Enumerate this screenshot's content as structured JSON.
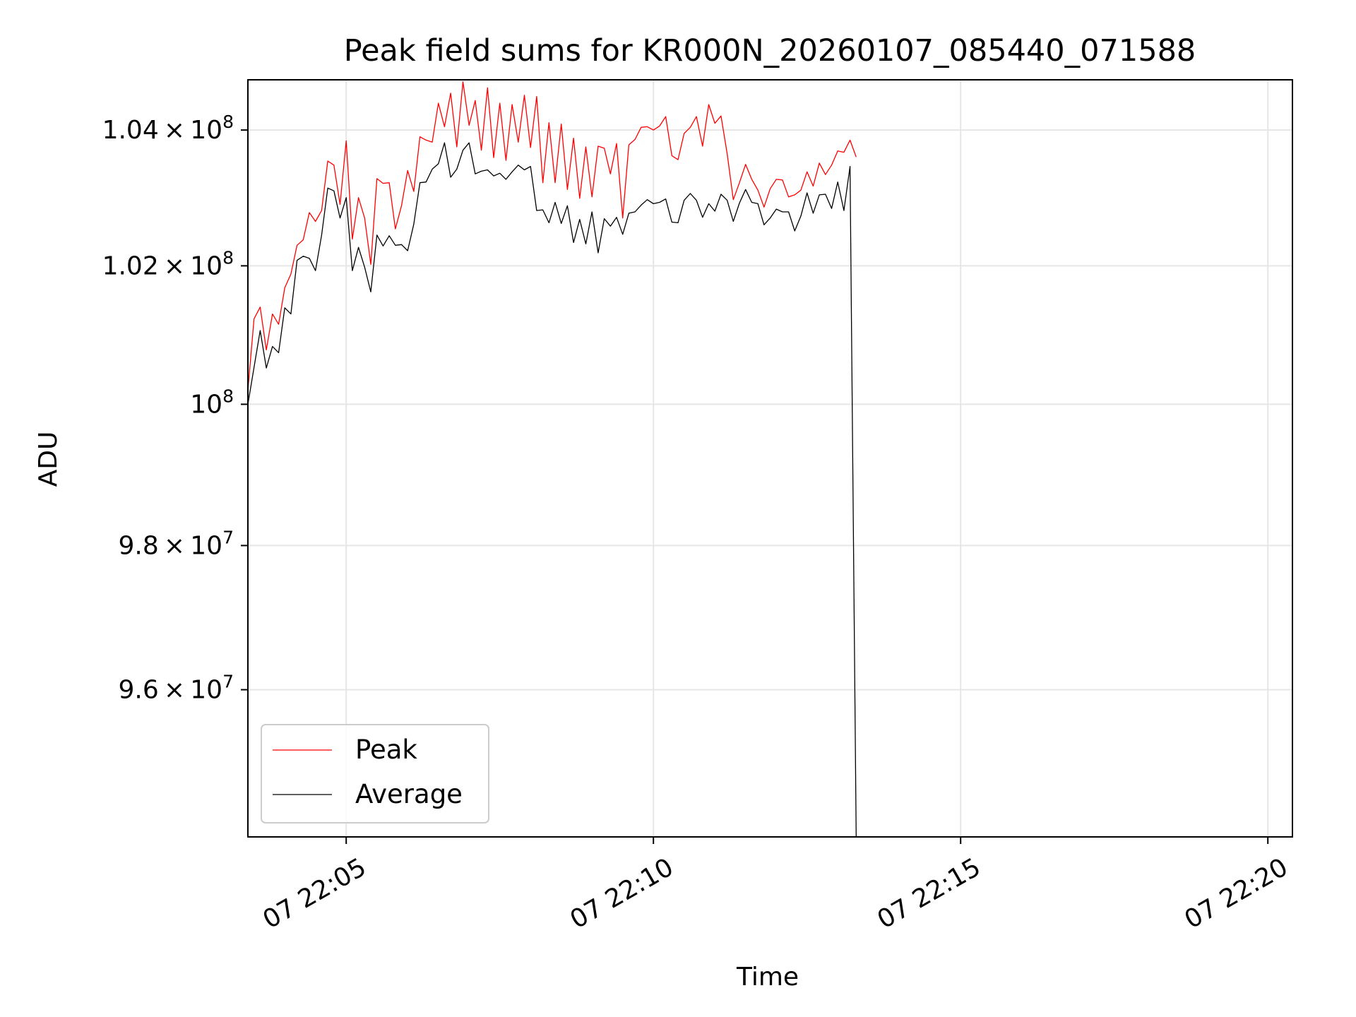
{
  "chart_data": {
    "type": "line",
    "title": "Peak field sums for KR000N_20260107_085440_071588",
    "xlabel": "Time",
    "ylabel": "ADU",
    "xlim": [
      "07 22:03:24",
      "07 22:20:24"
    ],
    "ylim": [
      94000000,
      104750000
    ],
    "y_scale": "log",
    "grid": true,
    "legend": "lower-left",
    "x_ticks": [
      "07 22:05",
      "07 22:10",
      "07 22:15",
      "07 22:20"
    ],
    "y_ticks": [
      {
        "value": 96000000,
        "mantissa": "9.6",
        "exponent": "7"
      },
      {
        "value": 98000000,
        "mantissa": "9.8",
        "exponent": "7"
      },
      {
        "value": 100000000,
        "mantissa": "",
        "exponent": "8"
      },
      {
        "value": 102000000,
        "mantissa": "1.02",
        "exponent": "8"
      },
      {
        "value": 104000000,
        "mantissa": "1.04",
        "exponent": "8"
      }
    ],
    "x_start": "07 22:03:24",
    "x_step_seconds": 6,
    "series": [
      {
        "name": "Peak",
        "color": "#ff0000",
        "values": [
          100200000,
          101230000,
          101400000,
          100780000,
          101300000,
          101150000,
          101680000,
          101880000,
          102300000,
          102380000,
          102780000,
          102650000,
          102810000,
          103540000,
          103480000,
          102900000,
          103840000,
          102390000,
          103000000,
          102700000,
          102020000,
          103280000,
          103210000,
          103220000,
          102540000,
          102880000,
          103400000,
          103090000,
          103900000,
          103850000,
          103820000,
          104400000,
          104050000,
          104550000,
          103750000,
          104720000,
          104070000,
          104440000,
          103700000,
          104630000,
          103590000,
          104400000,
          103550000,
          104380000,
          103820000,
          104520000,
          103740000,
          104500000,
          103220000,
          104110000,
          103220000,
          104090000,
          103120000,
          103880000,
          102990000,
          103750000,
          103010000,
          103760000,
          103730000,
          103350000,
          103800000,
          102700000,
          103780000,
          103860000,
          104040000,
          104050000,
          104000000,
          104060000,
          104200000,
          103620000,
          103560000,
          103950000,
          104040000,
          104200000,
          103760000,
          104380000,
          104100000,
          104210000,
          103650000,
          102970000,
          103220000,
          103490000,
          103270000,
          103110000,
          102860000,
          103130000,
          103270000,
          103260000,
          103010000,
          103040000,
          103110000,
          103380000,
          103170000,
          103510000,
          103340000,
          103480000,
          103690000,
          103670000,
          103850000,
          103600000
        ]
      },
      {
        "name": "Average",
        "color": "#000000",
        "values": [
          100000000,
          100530000,
          101060000,
          100520000,
          100830000,
          100740000,
          101390000,
          101300000,
          102080000,
          102140000,
          102110000,
          101930000,
          102450000,
          103140000,
          103100000,
          102700000,
          103000000,
          101930000,
          102270000,
          101980000,
          101620000,
          102450000,
          102290000,
          102440000,
          102300000,
          102310000,
          102220000,
          102610000,
          103220000,
          103230000,
          103420000,
          103500000,
          103810000,
          103300000,
          103420000,
          103700000,
          103810000,
          103350000,
          103390000,
          103410000,
          103320000,
          103360000,
          103270000,
          103380000,
          103480000,
          103410000,
          103460000,
          102810000,
          102820000,
          102630000,
          102930000,
          102620000,
          102880000,
          102340000,
          102680000,
          102320000,
          102790000,
          102190000,
          102690000,
          102580000,
          102710000,
          102460000,
          102770000,
          102790000,
          102890000,
          102970000,
          102910000,
          102930000,
          102980000,
          102640000,
          102630000,
          102960000,
          103060000,
          102960000,
          102710000,
          102910000,
          102800000,
          103050000,
          102960000,
          102650000,
          102920000,
          103120000,
          102930000,
          102910000,
          102600000,
          102700000,
          102830000,
          102790000,
          102790000,
          102510000,
          102730000,
          103070000,
          102770000,
          103040000,
          103050000,
          102840000,
          103230000,
          102810000,
          103460000,
          94000000
        ]
      }
    ]
  }
}
